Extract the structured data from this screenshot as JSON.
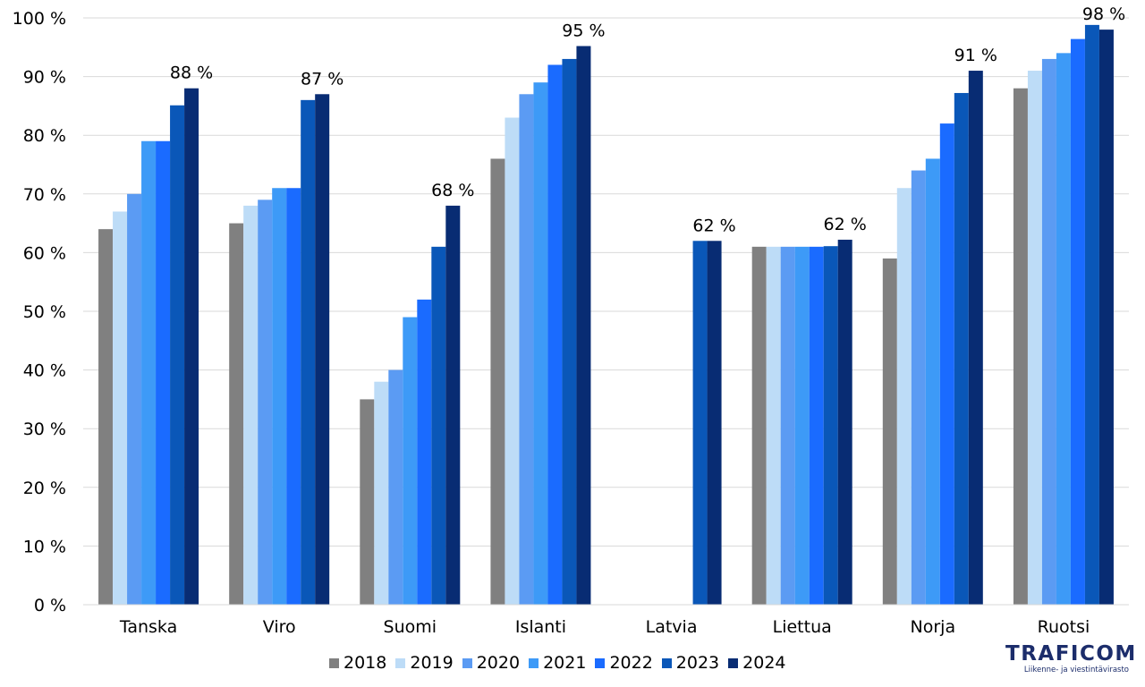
{
  "chart_data": {
    "type": "bar",
    "categories": [
      "Tanska",
      "Viro",
      "Suomi",
      "Islanti",
      "Latvia",
      "Liettua",
      "Norja",
      "Ruotsi"
    ],
    "series": [
      {
        "name": "2018",
        "color": "#808080",
        "values": [
          64,
          65,
          35,
          76,
          null,
          61,
          59,
          88
        ]
      },
      {
        "name": "2019",
        "color": "#bddcf7",
        "values": [
          67,
          68,
          38,
          83,
          null,
          61,
          71,
          91
        ]
      },
      {
        "name": "2020",
        "color": "#5b9bf3",
        "values": [
          70,
          69,
          40,
          87,
          null,
          61,
          74,
          93
        ]
      },
      {
        "name": "2021",
        "color": "#3d9af7",
        "values": [
          79,
          71,
          49,
          89,
          null,
          61,
          76,
          94
        ]
      },
      {
        "name": "2022",
        "color": "#1a6bff",
        "values": [
          79,
          71,
          52,
          92,
          null,
          61,
          82,
          96.4
        ]
      },
      {
        "name": "2023",
        "color": "#0a57b8",
        "values": [
          85.1,
          86,
          61,
          93,
          62,
          61.1,
          87.2,
          98.8
        ]
      },
      {
        "name": "2024",
        "color": "#082c73",
        "values": [
          88,
          87,
          68,
          95.2,
          62,
          62.2,
          91,
          98
        ]
      }
    ],
    "data_labels": [
      "88 %",
      "87 %",
      "68 %",
      "95 %",
      "62 %",
      "62 %",
      "91 %",
      "98 %"
    ],
    "y_ticks": [
      "0 %",
      "10 %",
      "20 %",
      "30 %",
      "40 %",
      "50 %",
      "60 %",
      "70 %",
      "80 %",
      "90 %",
      "100 %"
    ],
    "ylim": [
      0,
      100
    ],
    "grid": true,
    "legend_position": "bottom"
  },
  "logo": {
    "word": "TRAFICOM",
    "tagline": "Liikenne- ja viestintävirasto"
  }
}
